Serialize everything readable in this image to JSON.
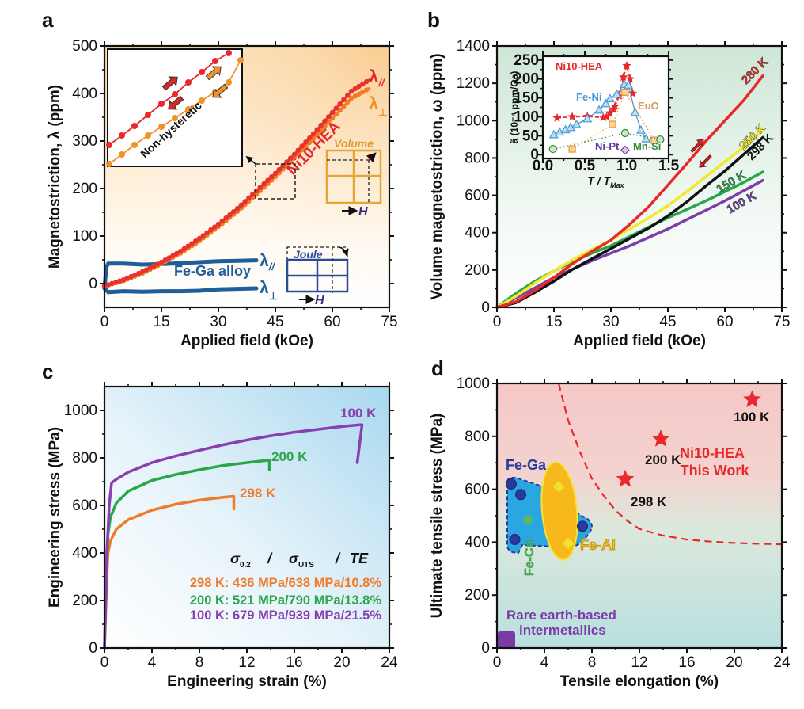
{
  "chart_data": [
    {
      "panel": "a",
      "type": "line",
      "xlabel": "Applied field (kOe)",
      "ylabel": "Magnetostriction, λ (ppm)",
      "xlim": [
        0,
        75
      ],
      "ylim": [
        -50,
        500
      ],
      "xticks": [
        0,
        15,
        30,
        45,
        60,
        75
      ],
      "yticks": [
        0,
        100,
        200,
        300,
        400,
        500
      ],
      "series": [
        {
          "name": "Ni10-HEA λ//",
          "color": "#e8322d",
          "x": [
            0,
            5,
            10,
            15,
            20,
            25,
            30,
            35,
            40,
            45,
            50,
            55,
            60,
            65,
            70
          ],
          "values": [
            -5,
            8,
            25,
            45,
            68,
            95,
            125,
            158,
            195,
            232,
            272,
            315,
            360,
            405,
            430
          ]
        },
        {
          "name": "Ni10-HEA λ⊥",
          "color": "#f07c2a",
          "x": [
            0,
            5,
            10,
            15,
            20,
            25,
            30,
            35,
            40,
            45,
            50,
            55,
            60,
            65,
            70
          ],
          "values": [
            -5,
            6,
            22,
            42,
            64,
            90,
            120,
            152,
            188,
            225,
            265,
            305,
            348,
            390,
            412
          ]
        },
        {
          "name": "Fe-Ga alloy λ//",
          "color": "#1f5e9a",
          "x": [
            0,
            0.5,
            1,
            5,
            10,
            15,
            20,
            25,
            30,
            35,
            40
          ],
          "values": [
            -10,
            35,
            42,
            42,
            40,
            41,
            43,
            45,
            47,
            48,
            49
          ]
        },
        {
          "name": "Fe-Ga alloy λ⊥",
          "color": "#1f5e9a",
          "x": [
            0,
            1,
            5,
            10,
            15,
            20,
            25,
            30,
            35,
            40
          ],
          "values": [
            -10,
            -18,
            -16,
            -17,
            -16,
            -16,
            -15,
            -12,
            -11,
            -10
          ]
        }
      ],
      "annotations": {
        "hea_label": "Ni10-HEA",
        "lambda_par": "λ",
        "par_sub": "//",
        "lambda_perp": "λ",
        "perp_sub": "⊥",
        "fega_label": "Fe-Ga alloy",
        "volume_label": "Volume",
        "joule_label": "Joule",
        "h_label": "H",
        "inset_label": "Non-hysteretic"
      }
    },
    {
      "panel": "b",
      "type": "line",
      "xlabel": "Applied field (kOe)",
      "ylabel": "Volume magnetostriction, ω (ppm)",
      "xlim": [
        0,
        75
      ],
      "ylim": [
        0,
        1400
      ],
      "xticks": [
        0,
        15,
        30,
        45,
        60,
        75
      ],
      "yticks": [
        0,
        200,
        400,
        600,
        800,
        1000,
        1200,
        1400
      ],
      "series": [
        {
          "name": "280 K",
          "color": "#e8282a",
          "x": [
            0,
            5,
            10,
            15,
            20,
            25,
            30,
            35,
            40,
            45,
            50,
            55,
            60,
            65,
            70
          ],
          "values": [
            0,
            30,
            90,
            160,
            235,
            300,
            360,
            445,
            540,
            655,
            770,
            890,
            1000,
            1110,
            1240
          ]
        },
        {
          "name": "250 K",
          "color": "#f2ea2a",
          "x": [
            0,
            5,
            10,
            15,
            20,
            25,
            30,
            35,
            40,
            45,
            50,
            55,
            60,
            65,
            70
          ],
          "values": [
            0,
            60,
            130,
            195,
            255,
            310,
            360,
            420,
            480,
            545,
            620,
            700,
            780,
            860,
            950
          ]
        },
        {
          "name": "298 K",
          "color": "#111111",
          "x": [
            0,
            5,
            10,
            15,
            20,
            25,
            30,
            35,
            40,
            45,
            50,
            55,
            60,
            65,
            70
          ],
          "values": [
            0,
            25,
            80,
            140,
            205,
            260,
            315,
            370,
            425,
            490,
            565,
            650,
            730,
            820,
            910
          ]
        },
        {
          "name": "150 K",
          "color": "#2aa64a",
          "x": [
            0,
            5,
            10,
            15,
            20,
            25,
            30,
            35,
            40,
            45,
            50,
            55,
            60,
            65,
            70
          ],
          "values": [
            0,
            75,
            140,
            195,
            245,
            290,
            330,
            380,
            430,
            480,
            525,
            570,
            620,
            670,
            725
          ]
        },
        {
          "name": "100 K",
          "color": "#7b3fa8",
          "x": [
            0,
            5,
            10,
            15,
            20,
            25,
            30,
            35,
            40,
            45,
            50,
            55,
            60,
            65,
            70
          ],
          "values": [
            0,
            50,
            105,
            160,
            205,
            250,
            290,
            330,
            375,
            420,
            470,
            520,
            570,
            625,
            680
          ]
        }
      ],
      "inset": {
        "xlabel": "T / T_Max",
        "xlabel_main": "T / T",
        "xlabel_sub": "Max",
        "ylabel": "ã (10⁻⁴ ppm/Oe)",
        "xlim": [
          0,
          1.5
        ],
        "ylim": [
          -10,
          260
        ],
        "xticks": [
          "0.0",
          "0.5",
          "1.0",
          "1.5"
        ],
        "yticks": [
          "0",
          "50",
          "100",
          "150",
          "200",
          "250"
        ],
        "series": [
          {
            "name": "Ni10-HEA",
            "color": "#e8282a",
            "marker": "star",
            "x": [
              0.17,
              0.35,
              0.53,
              0.72,
              0.76,
              0.8,
              0.84,
              0.86,
              0.91,
              0.96,
              1.0,
              1.04,
              1.07
            ],
            "values": [
              97,
              100,
              101,
              98,
              100,
              110,
              120,
              128,
              155,
              205,
              235,
              200,
              162
            ]
          },
          {
            "name": "Fe-Ni",
            "color": "#4a9ad4",
            "marker": "triangle",
            "x": [
              0.13,
              0.2,
              0.27,
              0.33,
              0.4,
              0.53,
              0.67,
              0.75,
              0.8,
              0.88,
              0.97,
              1.02,
              1.1,
              1.17,
              1.23
            ],
            "values": [
              53,
              60,
              66,
              72,
              80,
              95,
              118,
              135,
              148,
              160,
              186,
              184,
              112,
              65,
              42
            ]
          },
          {
            "name": "EuO",
            "color": "#f0922a",
            "marker": "square",
            "x": [
              0.35,
              0.83,
              0.98,
              1.33
            ],
            "values": [
              15,
              80,
              165,
              38
            ]
          },
          {
            "name": "Ni-Pt",
            "color": "#6a3f9a",
            "marker": "diamond",
            "x": [
              0.98
            ],
            "values": [
              12
            ]
          },
          {
            "name": "Mn-Si",
            "color": "#2e8b3a",
            "marker": "hexagon",
            "x": [
              0.12,
              0.98,
              1.4
            ],
            "values": [
              15,
              57,
              40
            ]
          }
        ],
        "labels": {
          "hea": "Ni10-HEA",
          "feni": "Fe-Ni",
          "euo": "EuO",
          "nipt": "Ni-Pt",
          "mnsi": "Mn-Si"
        }
      }
    },
    {
      "panel": "c",
      "type": "line",
      "xlabel": "Engineering strain (%)",
      "ylabel": "Engineering stress (MPa)",
      "xlim": [
        0,
        24
      ],
      "ylim": [
        0,
        1100
      ],
      "xticks": [
        0,
        4,
        8,
        12,
        16,
        20,
        24
      ],
      "yticks": [
        0,
        200,
        400,
        600,
        800,
        1000
      ],
      "series": [
        {
          "name": "298 K",
          "color": "#f07c2a",
          "x": [
            0,
            0.2,
            0.3,
            0.5,
            1,
            2,
            4,
            6,
            8,
            10,
            10.8,
            10.9,
            10.9
          ],
          "values": [
            0,
            300,
            400,
            450,
            500,
            540,
            580,
            605,
            622,
            634,
            638,
            638,
            585
          ]
        },
        {
          "name": "200 K",
          "color": "#2aa64a",
          "x": [
            0,
            0.2,
            0.3,
            0.5,
            1,
            2,
            4,
            6,
            8,
            10,
            12,
            13.8,
            13.9,
            13.9
          ],
          "values": [
            0,
            350,
            480,
            550,
            610,
            660,
            705,
            730,
            750,
            768,
            780,
            790,
            790,
            750
          ]
        },
        {
          "name": "100 K",
          "color": "#8a3fb0",
          "x": [
            0,
            0.2,
            0.4,
            0.6,
            1,
            2,
            4,
            6,
            8,
            10,
            12,
            14,
            16,
            18,
            20,
            21.5,
            21.7,
            21.3
          ],
          "values": [
            0,
            400,
            600,
            695,
            710,
            740,
            780,
            808,
            832,
            855,
            875,
            893,
            908,
            920,
            932,
            939,
            939,
            780
          ]
        }
      ],
      "annotations": {
        "label_298": "298 K",
        "label_200": "200 K",
        "label_100": "100 K",
        "header_sigma": "σ",
        "header_02": "0.2",
        "header_slash": "/",
        "header_uts": "UTS",
        "header_te": "TE",
        "row_298": "298 K: 436 MPa/638 MPa/10.8%",
        "row_200": "200 K: 521 MPa/790 MPa/13.8%",
        "row_100": "100 K: 679 MPa/939 MPa/21.5%"
      }
    },
    {
      "panel": "d",
      "type": "scatter",
      "xlabel": "Tensile elongation (%)",
      "ylabel": "Ultimate tensile stress (MPa)",
      "xlim": [
        0,
        24
      ],
      "ylim": [
        0,
        1000
      ],
      "xticks": [
        0,
        4,
        8,
        12,
        16,
        20,
        24
      ],
      "yticks": [
        0,
        200,
        400,
        600,
        800,
        1000
      ],
      "series": [
        {
          "name": "Ni10-HEA This Work",
          "color": "#e8282a",
          "marker": "star",
          "points": [
            {
              "x": 10.8,
              "y": 638,
              "label": "298 K"
            },
            {
              "x": 13.8,
              "y": 790,
              "label": "200 K"
            },
            {
              "x": 21.5,
              "y": 939,
              "label": "100 K"
            }
          ]
        },
        {
          "name": "Fe-Ga",
          "color": "#2a3a9a",
          "marker": "circle",
          "points": [
            {
              "x": 1.2,
              "y": 620
            },
            {
              "x": 2.0,
              "y": 580
            },
            {
              "x": 1.5,
              "y": 410
            },
            {
              "x": 7.2,
              "y": 460
            }
          ]
        },
        {
          "name": "Fe-Al",
          "color": "#f2e02a",
          "marker": "diamond",
          "points": [
            {
              "x": 5.2,
              "y": 610
            },
            {
              "x": 6.0,
              "y": 395
            }
          ]
        },
        {
          "name": "Fe-Co",
          "color": "#5cb85c",
          "marker": "square",
          "points": [
            {
              "x": 2.6,
              "y": 485
            }
          ]
        },
        {
          "name": "Rare earth-based intermetallics",
          "color": "#7a3aa8",
          "marker": "square",
          "points": [
            {
              "x": 0.8,
              "y": 30
            }
          ]
        }
      ],
      "boundary_curve": {
        "style": "dashed",
        "color": "#e8282a",
        "x": [
          5.2,
          6,
          7,
          8,
          9,
          10,
          11,
          12,
          14,
          16,
          18,
          20,
          22,
          24
        ],
        "values": [
          1000,
          860,
          740,
          640,
          575,
          520,
          480,
          450,
          425,
          410,
          402,
          397,
          394,
          392
        ]
      },
      "labels": {
        "fega": "Fe-Ga",
        "feal": "Fe-Al",
        "feco": "Fe-Co",
        "rare1": "Rare earth-based",
        "rare2": "intermetallics",
        "hea1": "Ni10-HEA",
        "hea2": "This Work",
        "k298": "298 K",
        "k200": "200 K",
        "k100": "100 K"
      }
    }
  ]
}
